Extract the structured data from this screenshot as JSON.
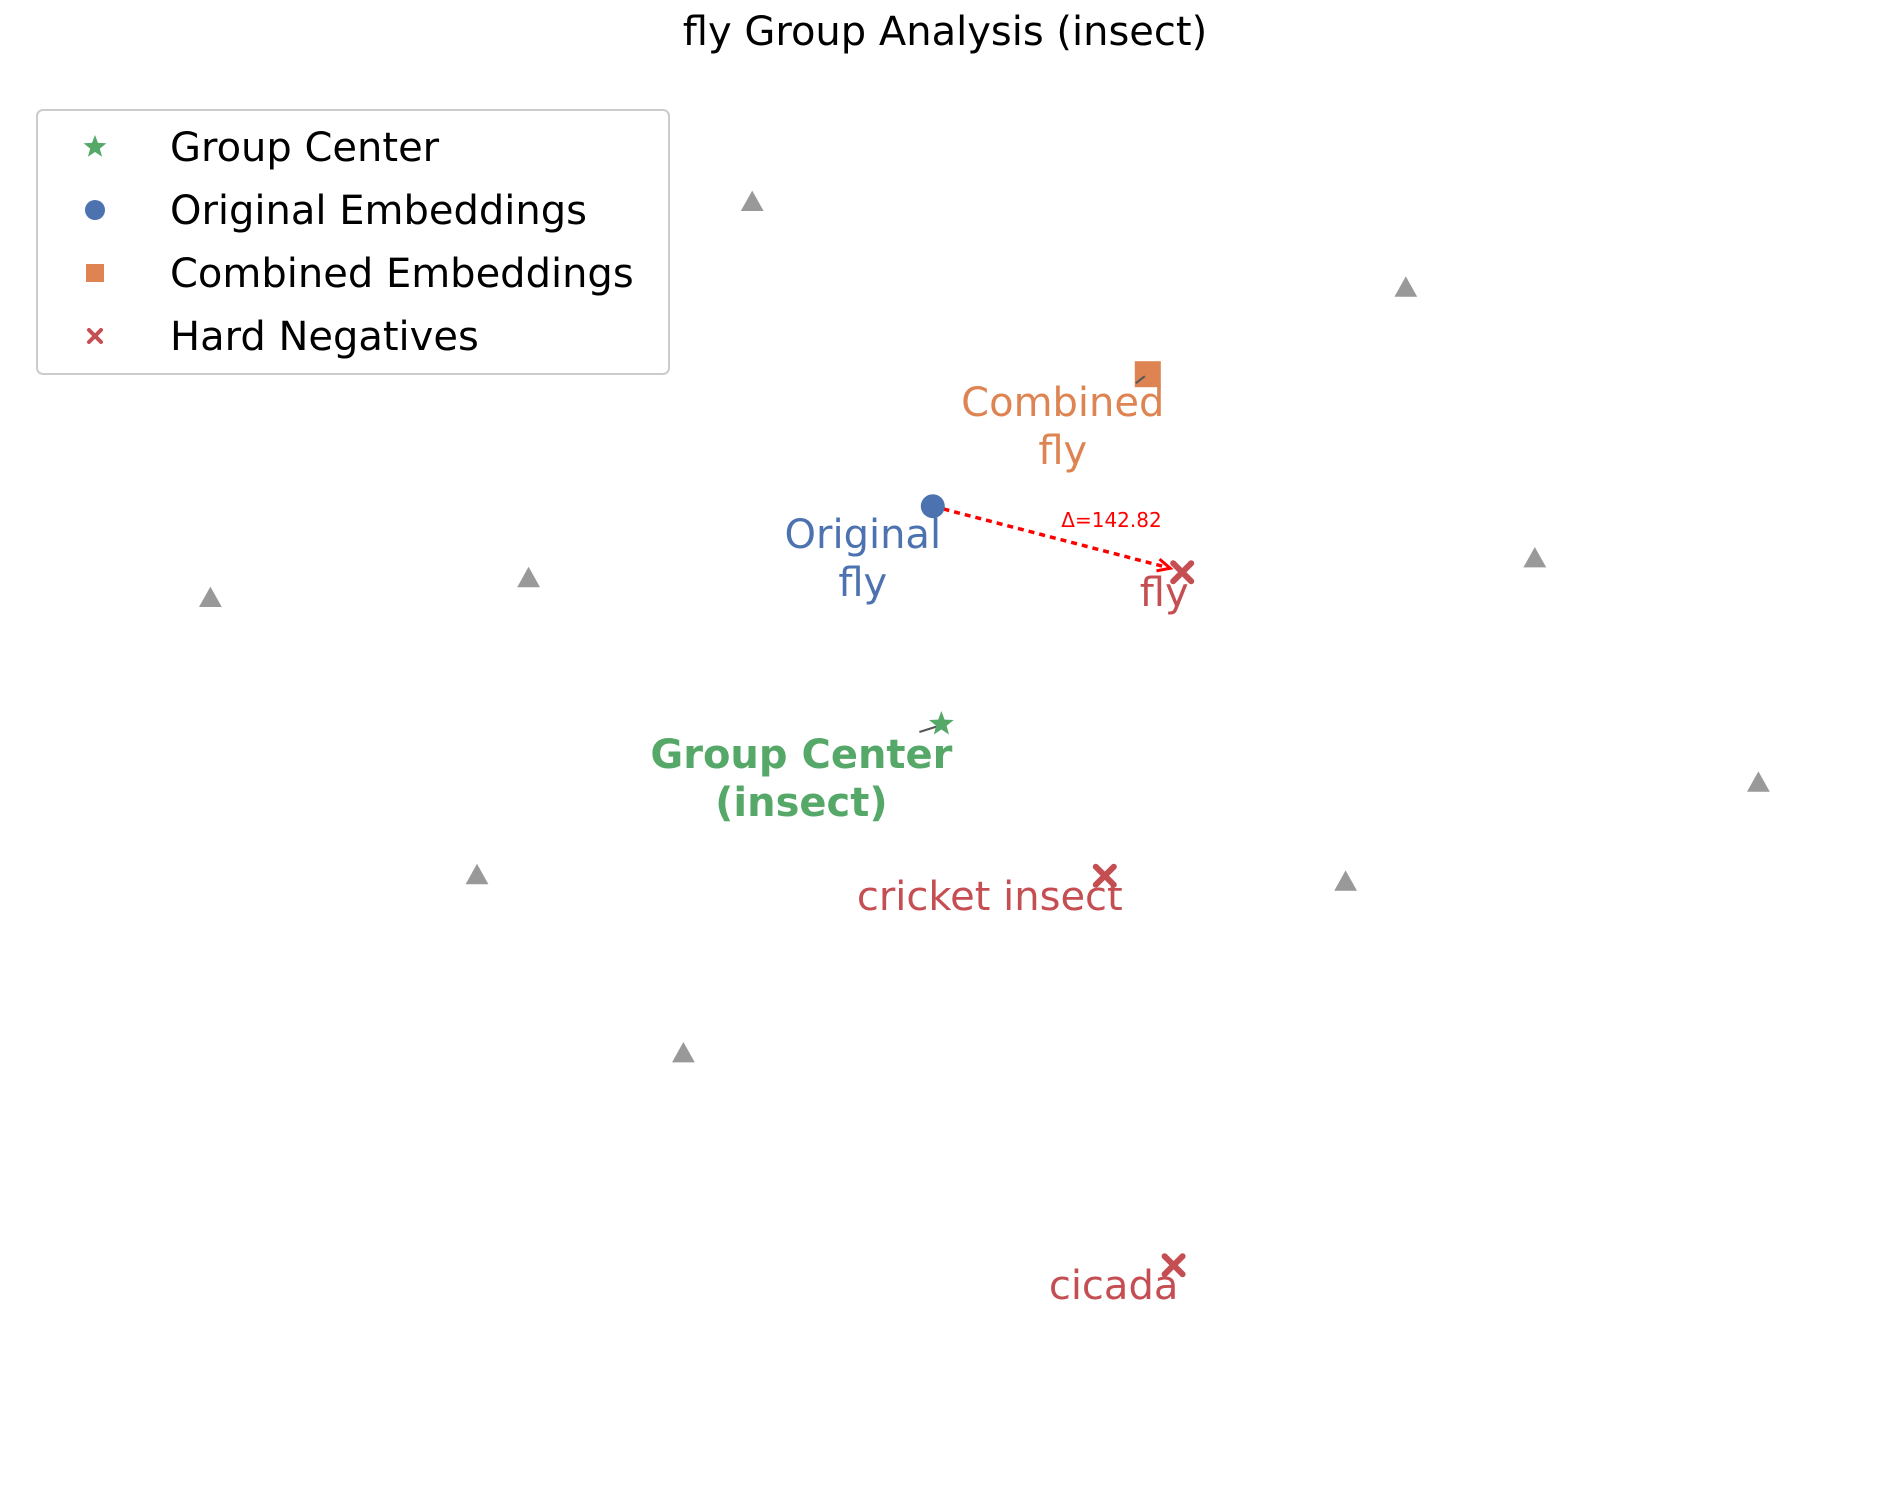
{
  "chart_data": {
    "type": "scatter",
    "title": "fly Group Analysis (insect)",
    "xlabel": "",
    "ylabel": "",
    "grid": false,
    "axes_visible": false,
    "legend_position": "upper-left",
    "xlim": [
      -10,
      10
    ],
    "ylim": [
      -10,
      10
    ],
    "legend": [
      {
        "label": "Group Center",
        "marker": "star",
        "color": "#55a868"
      },
      {
        "label": "Original Embeddings",
        "marker": "circle",
        "color": "#4c72b0"
      },
      {
        "label": "Combined Embeddings",
        "marker": "square",
        "color": "#dd8452"
      },
      {
        "label": "Hard Negatives",
        "marker": "x",
        "color": "#c44e52"
      }
    ],
    "background_points": [
      {
        "x": -2.3,
        "y": 8.9
      },
      {
        "x": 5.3,
        "y": 7.6
      },
      {
        "x": -8.6,
        "y": 2.9
      },
      {
        "x": -4.9,
        "y": 3.2
      },
      {
        "x": 6.8,
        "y": 3.5
      },
      {
        "x": 9.4,
        "y": 0.1
      },
      {
        "x": -5.5,
        "y": -1.3
      },
      {
        "x": 4.6,
        "y": -1.4
      },
      {
        "x": -3.1,
        "y": -4.0
      }
    ],
    "background_color": "#999999",
    "group_center": {
      "x": -0.1,
      "y": 1.0,
      "label": "Group Center\n(insect)"
    },
    "original": {
      "x": -0.2,
      "y": 4.3,
      "label": "Original\nfly"
    },
    "combined": {
      "x": 2.3,
      "y": 6.3,
      "label": "Combined\nfly"
    },
    "hard_negatives": [
      {
        "x": 2.7,
        "y": 3.3,
        "label": "fly"
      },
      {
        "x": 1.8,
        "y": -1.3,
        "label": "cricket insect"
      },
      {
        "x": 2.6,
        "y": -7.2,
        "label": "cicada"
      }
    ],
    "shift_annotation": {
      "from": "original",
      "to_index": 0,
      "text": "Δ=142.82",
      "color": "#ff0000"
    }
  }
}
